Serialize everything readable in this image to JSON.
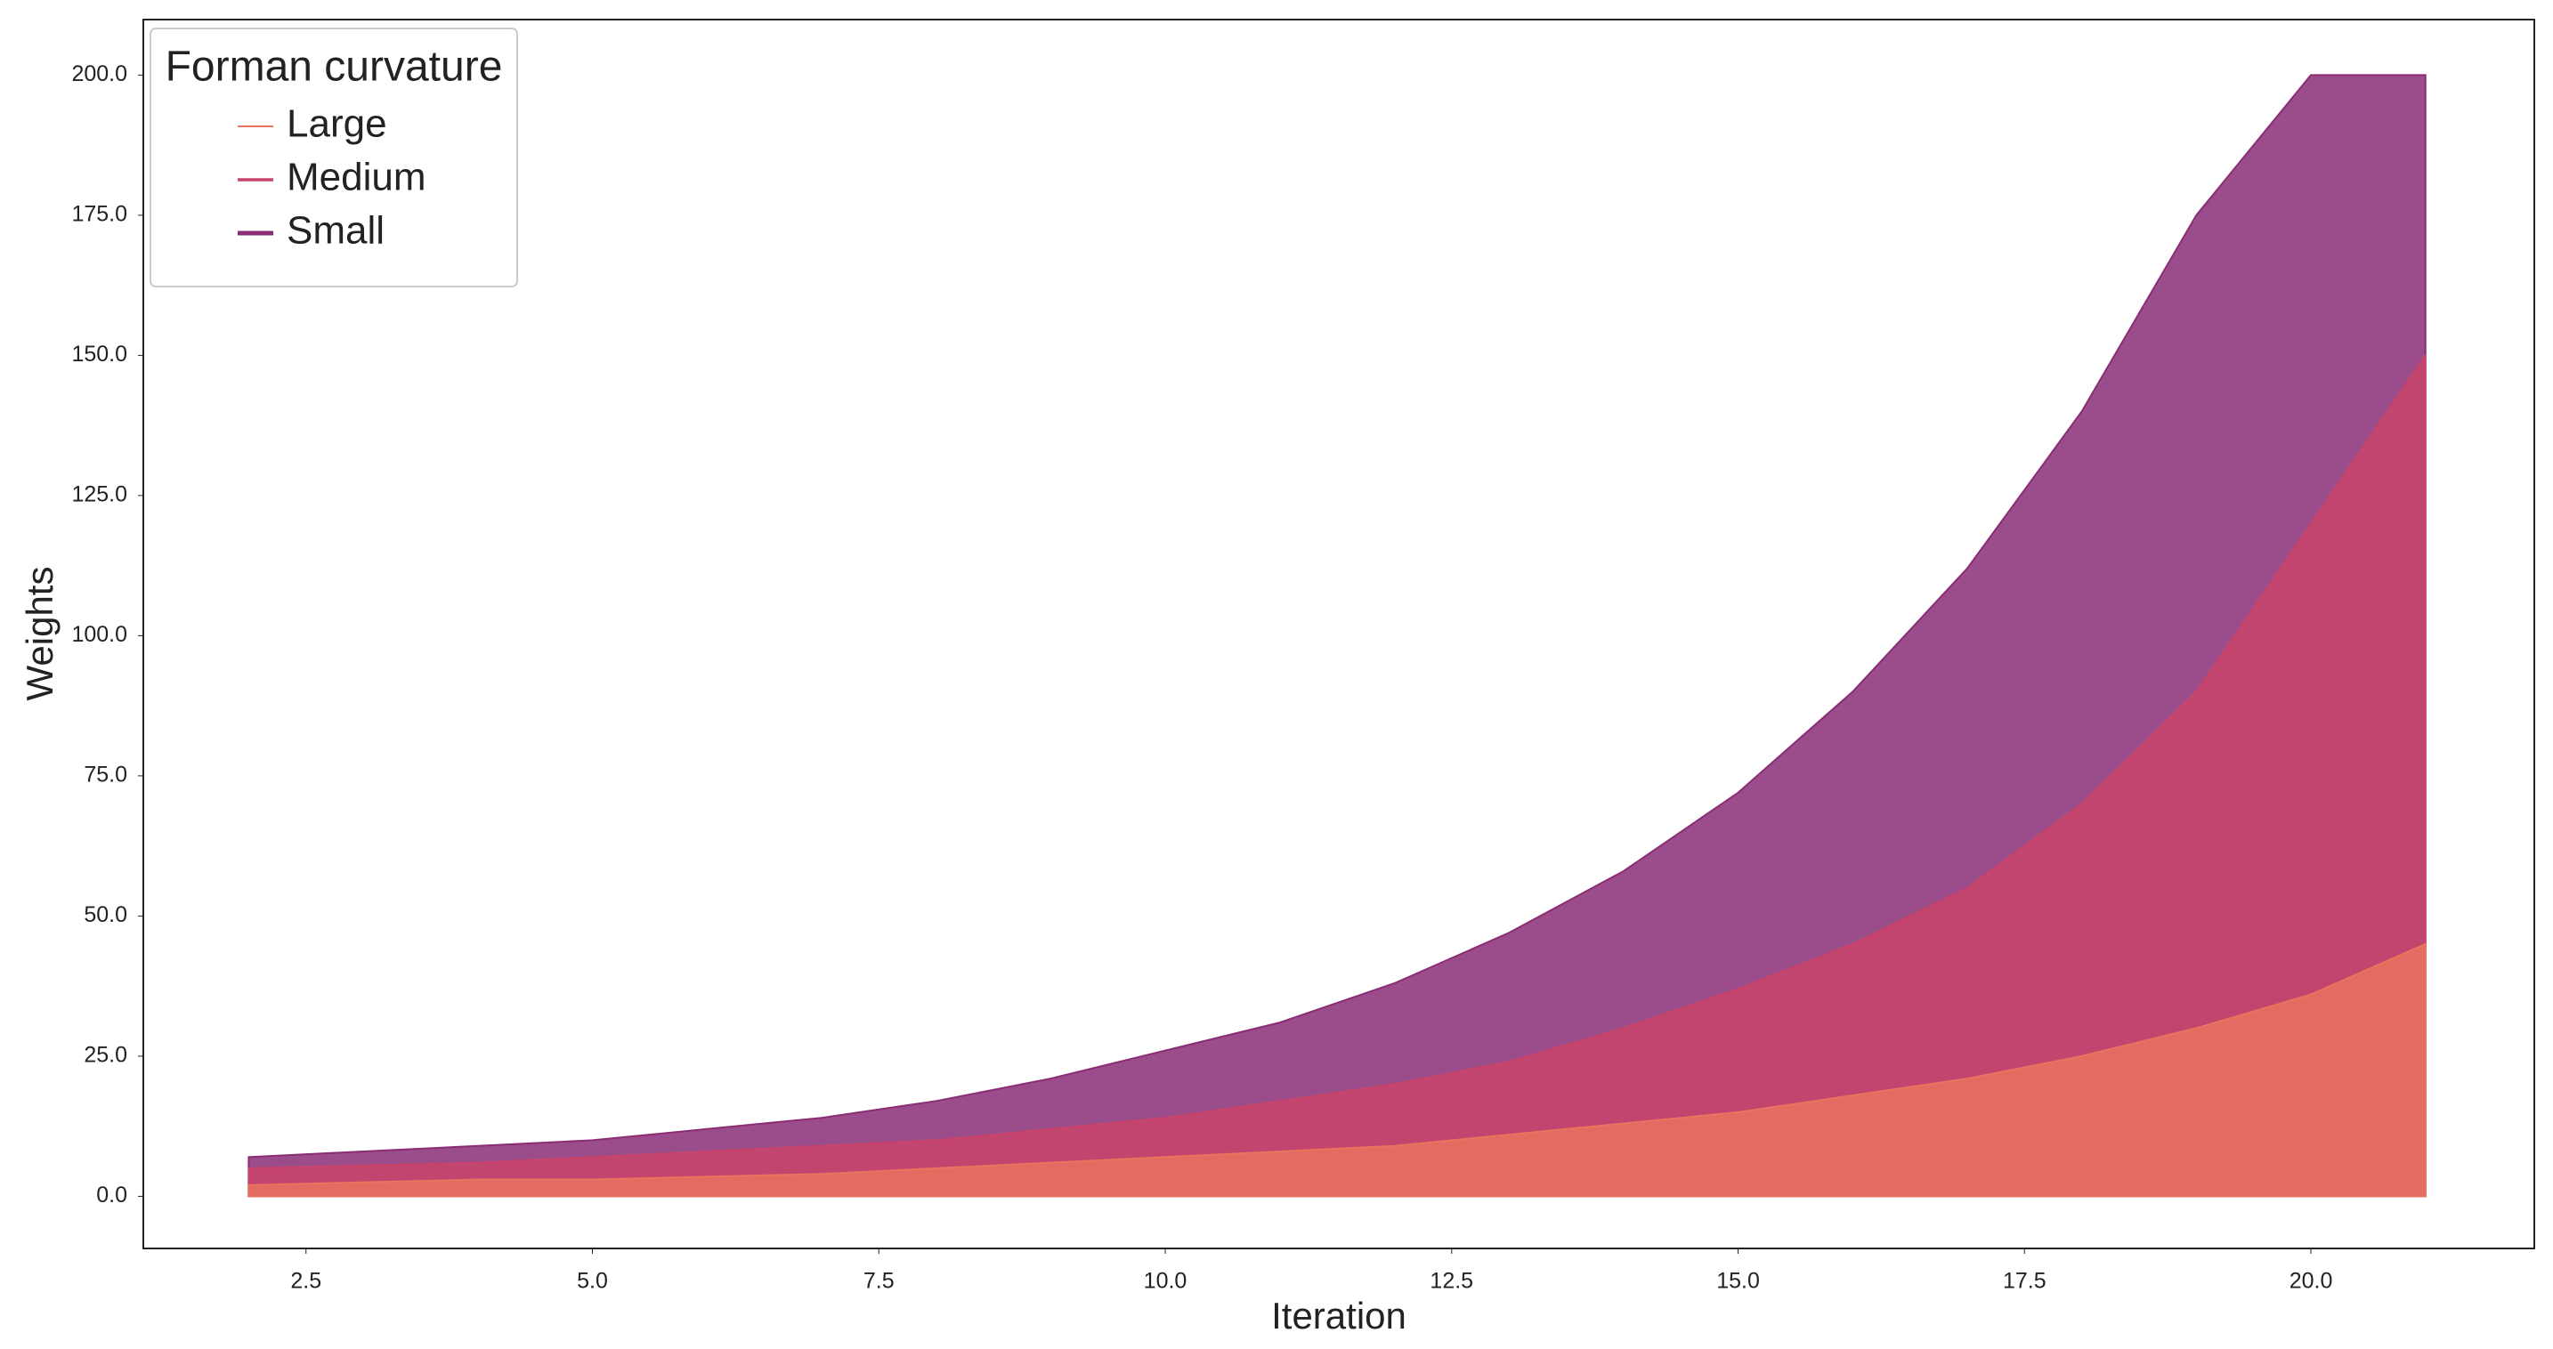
{
  "chart_data": {
    "type": "area",
    "xlabel": "Iteration",
    "ylabel": "Weights",
    "legend_title": "Forman curvature",
    "legend": "upper left",
    "x": [
      2,
      3,
      4,
      5,
      6,
      7,
      8,
      9,
      10,
      11,
      12,
      13,
      14,
      15,
      16,
      17,
      18,
      19,
      20,
      21
    ],
    "series": [
      {
        "name": "Large",
        "color": "#e8735f",
        "values": [
          2,
          2.5,
          3,
          3,
          3.5,
          4,
          5,
          6,
          7,
          8,
          9,
          11,
          13,
          15,
          18,
          21,
          25,
          30,
          36,
          45
        ]
      },
      {
        "name": "Medium",
        "color": "#c8446a",
        "values": [
          5,
          5.5,
          6,
          7,
          8,
          9,
          10,
          12,
          14,
          17,
          20,
          24,
          30,
          37,
          45,
          55,
          70,
          90,
          120,
          150
        ]
      },
      {
        "name": "Small",
        "color": "#8a2d75",
        "values": [
          7,
          8,
          9,
          10,
          12,
          14,
          17,
          21,
          26,
          31,
          38,
          47,
          58,
          72,
          90,
          112,
          140,
          175,
          200,
          200
        ]
      }
    ],
    "xlim": [
      1.08,
      21.95
    ],
    "ylim": [
      -9.3,
      209.9
    ],
    "xticks": [
      2.5,
      {
        "value": 5,
        "label": "5.0"
      },
      7.5,
      {
        "value": 10,
        "label": "10.0"
      },
      12.5,
      {
        "value": 15,
        "label": "15.0"
      },
      17.5,
      {
        "value": 20,
        "label": "20.0"
      }
    ],
    "yticks": [
      {
        "value": 0,
        "label": "0.0"
      },
      {
        "value": 25,
        "label": "25.0"
      },
      {
        "value": 50,
        "label": "50.0"
      },
      {
        "value": 75,
        "label": "75.0"
      },
      {
        "value": 100,
        "label": "100.0"
      },
      {
        "value": 125,
        "label": "125.0"
      },
      {
        "value": 150,
        "label": "150.0"
      },
      {
        "value": 175,
        "label": "175.0"
      },
      {
        "value": 200,
        "label": "200.0"
      }
    ],
    "grid": false
  }
}
